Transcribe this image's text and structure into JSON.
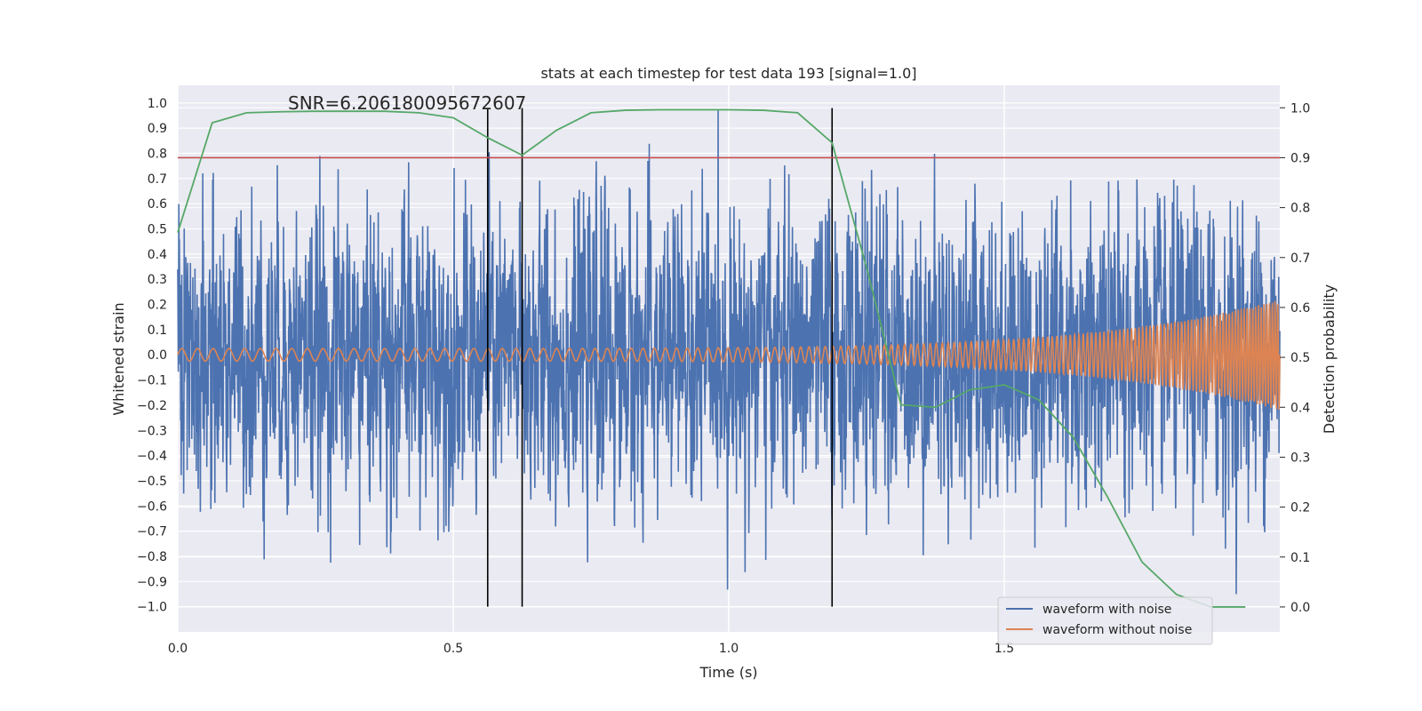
{
  "chart_data": {
    "type": "line",
    "title": "stats at each timestep for test data 193 [signal=1.0]",
    "annotation": "SNR=6.206180095672607",
    "xlabel": "Time (s)",
    "ylabel_left": "Whitened strain",
    "ylabel_right": "Detection probability",
    "xlim": [
      0.0,
      2.0
    ],
    "ylim_left": [
      -1.1,
      1.07
    ],
    "ylim_right": [
      -0.05,
      1.045
    ],
    "x_ticks": [
      0.0,
      0.5,
      1.0,
      1.5
    ],
    "x_tick_labels": [
      "0.0",
      "0.5",
      "1.0",
      "1.5"
    ],
    "y_left_ticks": [
      1.0,
      0.9,
      0.8,
      0.7,
      0.6,
      0.5,
      0.4,
      0.3,
      0.2,
      0.1,
      0.0,
      -0.1,
      -0.2,
      -0.3,
      -0.4,
      -0.5,
      -0.6,
      -0.7,
      -0.8,
      -0.9,
      -1.0
    ],
    "y_left_tick_labels": [
      "1.0",
      "0.9",
      "0.8",
      "0.7",
      "0.6",
      "0.5",
      "0.4",
      "0.3",
      "0.2",
      "0.1",
      "0.0",
      "−0.1",
      "−0.2",
      "−0.3",
      "−0.4",
      "−0.5",
      "−0.6",
      "−0.7",
      "−0.8",
      "−0.9",
      "−1.0"
    ],
    "y_right_ticks": [
      1.0,
      0.9,
      0.8,
      0.7,
      0.6,
      0.5,
      0.4,
      0.3,
      0.2,
      0.1,
      0.0
    ],
    "y_right_tick_labels": [
      "1.0",
      "0.9",
      "0.8",
      "0.7",
      "0.6",
      "0.5",
      "0.4",
      "0.3",
      "0.2",
      "0.1",
      "0.0"
    ],
    "threshold": {
      "value": 0.9,
      "axis": "right",
      "color": "#c44e52"
    },
    "vertical_lines": [
      0.5625,
      0.625,
      1.1875
    ],
    "vertical_line_range": [
      -1.0,
      0.98
    ],
    "series": [
      {
        "name": "waveform with noise",
        "color": "#4c72b0",
        "axis": "left",
        "kind": "noise",
        "x_range": [
          0.0,
          2.0
        ],
        "samples": 4096,
        "std": 0.28,
        "clip": [
          -0.95,
          0.97
        ]
      },
      {
        "name": "waveform without noise",
        "color": "#dd8452",
        "axis": "left",
        "kind": "chirp",
        "x_range": [
          0.0,
          2.0
        ],
        "start_frequency_hz": 35,
        "end_frequency_hz": 120,
        "start_amplitude": 0.025,
        "end_amplitude": 0.22
      },
      {
        "name": "detection probability",
        "color": "#55a868",
        "axis": "right",
        "kind": "points",
        "x": [
          0.0,
          0.0625,
          0.125,
          0.1875,
          0.25,
          0.3125,
          0.375,
          0.4375,
          0.5,
          0.5625,
          0.625,
          0.6875,
          0.75,
          0.8125,
          0.875,
          0.9375,
          1.0,
          1.0625,
          1.125,
          1.1875,
          1.25,
          1.3125,
          1.375,
          1.4375,
          1.5,
          1.5625,
          1.625,
          1.6875,
          1.75,
          1.8125,
          1.875,
          1.9375
        ],
        "y": [
          0.75,
          0.97,
          0.99,
          0.992,
          0.993,
          0.993,
          0.993,
          0.99,
          0.98,
          0.94,
          0.905,
          0.955,
          0.99,
          0.995,
          0.996,
          0.996,
          0.996,
          0.995,
          0.99,
          0.93,
          0.68,
          0.405,
          0.4,
          0.435,
          0.445,
          0.415,
          0.34,
          0.22,
          0.09,
          0.025,
          0.0,
          0.0
        ]
      }
    ],
    "legend": {
      "placement": "bottom-right",
      "entries": [
        {
          "label": "waveform with noise",
          "color": "#4c72b0"
        },
        {
          "label": "waveform without noise",
          "color": "#dd8452"
        }
      ]
    },
    "colors": {
      "plot_background": "#eaeaf2",
      "grid": "#ffffff",
      "vline": "#000000"
    }
  }
}
